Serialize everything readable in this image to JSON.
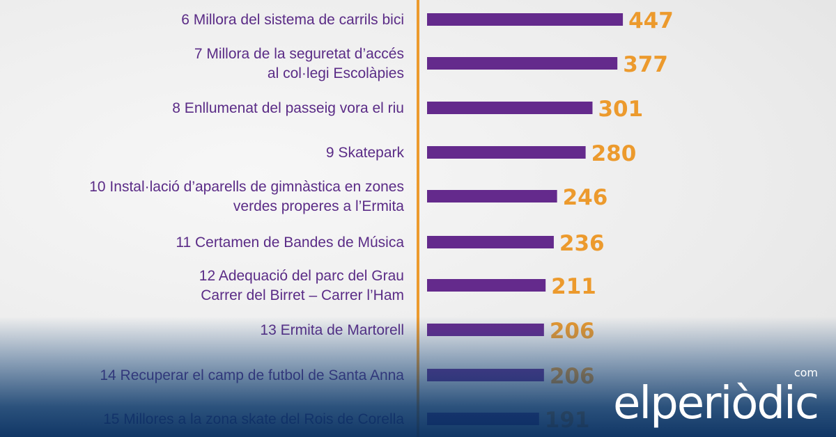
{
  "chart_data": {
    "type": "bar",
    "orientation": "horizontal",
    "categories": [
      [
        "6 Millora del sistema de carrils bici"
      ],
      [
        "7 Millora de la seguretat d’accés",
        "al col·legi Escolàpies"
      ],
      [
        "8 Enllumenat del passeig vora el riu"
      ],
      [
        "9 Skatepark"
      ],
      [
        "10 Instal·lació d’aparells de gimnàstica en zones",
        "verdes properes a l’Ermita"
      ],
      [
        "11 Certamen de Bandes de Música"
      ],
      [
        "12 Adequació del parc del Grau",
        "Carrer del Birret – Carrer l’Ham"
      ],
      [
        "13 Ermita de Martorell"
      ],
      [
        "14 Recuperar el camp de futbol de Santa Anna"
      ],
      [
        "15 Millores a la zona skate del Rois de Corella"
      ]
    ],
    "values": [
      447,
      377,
      301,
      280,
      246,
      236,
      211,
      206,
      206,
      191
    ],
    "colors": {
      "bar": "#642a8c",
      "value_label": "#ec9a2d",
      "axis": "#ec9a2d",
      "label": "#5a2b86"
    }
  },
  "watermark": {
    "brand": "elperiòdic",
    "suffix": "com"
  }
}
